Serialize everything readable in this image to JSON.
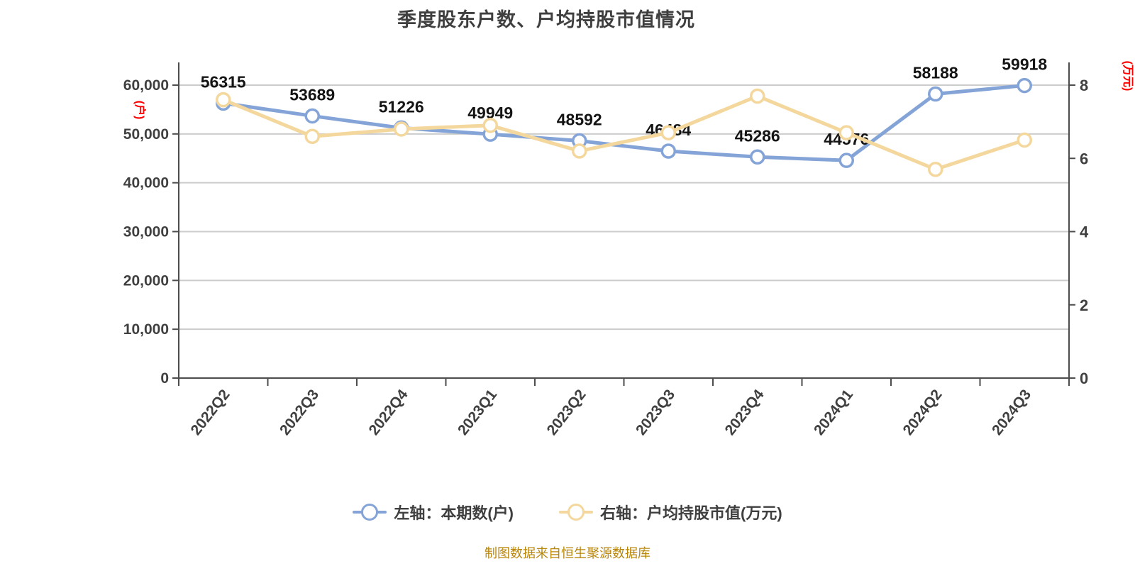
{
  "title": "季度股东户数、户均持股市值情况",
  "footer": "制图数据来自恒生聚源数据库",
  "legend": [
    {
      "label": "左轴：本期数(户)",
      "color": "#84a4d8"
    },
    {
      "label": "右轴：户均持股市值(万元)",
      "color": "#f4d79c"
    }
  ],
  "left_axis": {
    "unit": "(户)",
    "unit_color": "#ff0000",
    "min": 0,
    "max": 60000,
    "tick_labels": [
      "0",
      "10,000",
      "20,000",
      "30,000",
      "40,000",
      "50,000",
      "60,000"
    ]
  },
  "right_axis": {
    "unit": "(万元)",
    "unit_color": "#ff0000",
    "min": 0,
    "max": 8,
    "tick_labels": [
      "0",
      "2",
      "4",
      "6",
      "8"
    ]
  },
  "chart_data": {
    "type": "line",
    "title": "季度股东户数、户均持股市值情况",
    "categories": [
      "2022Q2",
      "2022Q3",
      "2022Q4",
      "2023Q1",
      "2023Q2",
      "2023Q3",
      "2023Q4",
      "2024Q1",
      "2024Q2",
      "2024Q3"
    ],
    "series": [
      {
        "name": "左轴：本期数(户)",
        "axis": "left",
        "color": "#84a4d8",
        "values": [
          56315,
          53689,
          51226,
          49949,
          48592,
          46484,
          45286,
          44576,
          58188,
          59918
        ],
        "data_labels": [
          "56315",
          "53689",
          "51226",
          "49949",
          "48592",
          "46484",
          "45286",
          "44576",
          "58188",
          "59918"
        ]
      },
      {
        "name": "右轴：户均持股市值(万元)",
        "axis": "right",
        "color": "#f4d79c",
        "values": [
          7.6,
          6.6,
          6.8,
          6.9,
          6.2,
          6.7,
          7.7,
          6.7,
          5.7,
          6.5
        ]
      }
    ],
    "left_ylim": [
      0,
      60000
    ],
    "right_ylim": [
      0,
      8
    ],
    "grid": true,
    "legend_position": "bottom"
  },
  "style": {
    "grid_color": "#cccccc",
    "axis_color": "#4d4d4d",
    "tick_label_color": "#404040",
    "data_label_color": "#141414"
  }
}
